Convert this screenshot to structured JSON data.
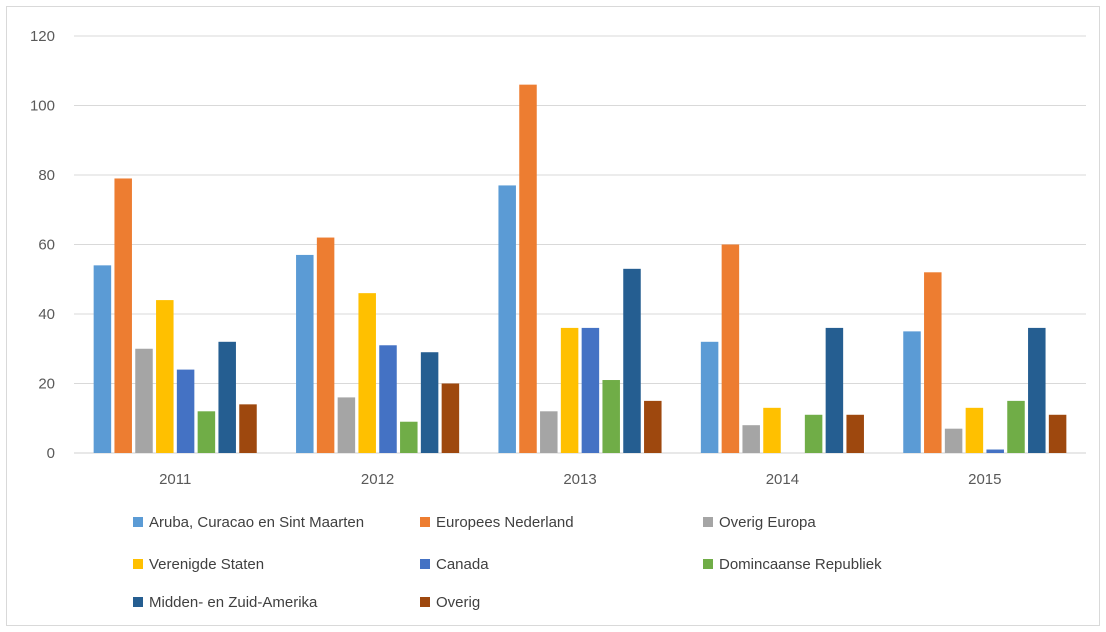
{
  "chart_data": {
    "type": "bar",
    "title": "",
    "xlabel": "",
    "ylabel": "",
    "categories": [
      "2011",
      "2012",
      "2013",
      "2014",
      "2015"
    ],
    "ylim": [
      0,
      120
    ],
    "yticks": [
      0,
      20,
      40,
      60,
      80,
      100,
      120
    ],
    "grid": true,
    "legend_position": "bottom",
    "series": [
      {
        "name": "Aruba, Curacao en Sint Maarten",
        "color": "#5b9bd5",
        "values": [
          54,
          57,
          77,
          32,
          35
        ]
      },
      {
        "name": "Europees Nederland",
        "color": "#ed7d31",
        "values": [
          79,
          62,
          106,
          60,
          52
        ]
      },
      {
        "name": "Overig Europa",
        "color": "#a5a5a5",
        "values": [
          30,
          16,
          12,
          8,
          7
        ]
      },
      {
        "name": "Verenigde Staten",
        "color": "#ffc000",
        "values": [
          44,
          46,
          36,
          13,
          13
        ]
      },
      {
        "name": "Canada",
        "color": "#4472c4",
        "values": [
          24,
          31,
          36,
          0,
          1
        ]
      },
      {
        "name": "Domincaanse Republiek",
        "color": "#70ad47",
        "values": [
          12,
          9,
          21,
          11,
          15
        ]
      },
      {
        "name": "Midden- en Zuid-Amerika",
        "color": "#255e91",
        "values": [
          32,
          29,
          53,
          36,
          36
        ]
      },
      {
        "name": "Overig",
        "color": "#9e480e",
        "values": [
          14,
          20,
          15,
          11,
          11
        ]
      }
    ]
  }
}
